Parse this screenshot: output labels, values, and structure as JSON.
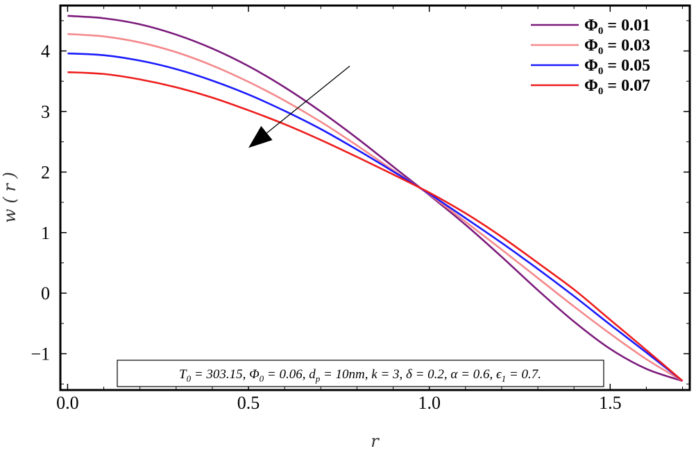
{
  "chart_data": {
    "type": "line",
    "title": "",
    "xlabel": "r",
    "ylabel": "w ( r )",
    "xlim": [
      -0.02,
      1.72
    ],
    "ylim": [
      -1.6,
      4.75
    ],
    "xticks": [
      {
        "value": 0.0,
        "label": "0.0"
      },
      {
        "value": 0.5,
        "label": "0.5"
      },
      {
        "value": 1.0,
        "label": "1.0"
      },
      {
        "value": 1.5,
        "label": "1.5"
      }
    ],
    "yticks": [
      {
        "value": -1,
        "label": "−1"
      },
      {
        "value": 0,
        "label": "0"
      },
      {
        "value": 1,
        "label": "1"
      },
      {
        "value": 2,
        "label": "2"
      },
      {
        "value": 3,
        "label": "3"
      },
      {
        "value": 4,
        "label": "4"
      }
    ],
    "grid": false,
    "legend_position": "top-right",
    "series": [
      {
        "name_symbol": "Φ",
        "name_sub": "0",
        "name_rest": " = 0.01",
        "color": "#7b1a7b",
        "x": [
          0,
          0.1,
          0.2,
          0.3,
          0.4,
          0.5,
          0.6,
          0.7,
          0.8,
          0.9,
          1.0,
          1.1,
          1.2,
          1.3,
          1.4,
          1.5,
          1.6,
          1.7
        ],
        "y": [
          4.58,
          4.54,
          4.44,
          4.27,
          4.04,
          3.75,
          3.4,
          3.0,
          2.56,
          2.09,
          1.62,
          1.13,
          0.6,
          0.05,
          -0.47,
          -0.92,
          -1.25,
          -1.45
        ]
      },
      {
        "name_symbol": "Φ",
        "name_sub": "0",
        "name_rest": " = 0.03",
        "color": "#f4888b",
        "x": [
          0,
          0.1,
          0.2,
          0.3,
          0.4,
          0.5,
          0.6,
          0.7,
          0.8,
          0.9,
          1.0,
          1.1,
          1.2,
          1.3,
          1.4,
          1.5,
          1.6,
          1.7
        ],
        "y": [
          4.28,
          4.24,
          4.14,
          3.98,
          3.76,
          3.49,
          3.18,
          2.83,
          2.44,
          2.03,
          1.63,
          1.18,
          0.72,
          0.25,
          -0.22,
          -0.67,
          -1.09,
          -1.45
        ]
      },
      {
        "name_symbol": "Φ",
        "name_sub": "0",
        "name_rest": " = 0.05",
        "color": "#1a1aff",
        "x": [
          0,
          0.1,
          0.2,
          0.3,
          0.4,
          0.5,
          0.6,
          0.7,
          0.8,
          0.9,
          1.0,
          1.1,
          1.2,
          1.3,
          1.4,
          1.5,
          1.6,
          1.7
        ],
        "y": [
          3.96,
          3.93,
          3.84,
          3.7,
          3.51,
          3.28,
          3.01,
          2.71,
          2.37,
          2.01,
          1.64,
          1.24,
          0.83,
          0.4,
          -0.05,
          -0.52,
          -0.98,
          -1.45
        ]
      },
      {
        "name_symbol": "Φ",
        "name_sub": "0",
        "name_rest": " = 0.07",
        "color": "#ee1c1c",
        "x": [
          0,
          0.1,
          0.2,
          0.3,
          0.4,
          0.5,
          0.6,
          0.7,
          0.8,
          0.9,
          1.0,
          1.1,
          1.2,
          1.3,
          1.4,
          1.5,
          1.6,
          1.7
        ],
        "y": [
          3.65,
          3.62,
          3.53,
          3.4,
          3.23,
          3.02,
          2.79,
          2.53,
          2.25,
          1.96,
          1.66,
          1.32,
          0.93,
          0.5,
          0.06,
          -0.44,
          -0.94,
          -1.45
        ]
      }
    ],
    "arrow": {
      "from": [
        0.78,
        3.75
      ],
      "to": [
        0.5,
        2.4
      ],
      "color": "#000000"
    },
    "annotation": {
      "position": "bottom-center",
      "parts": [
        {
          "t": "T"
        },
        {
          "t": "0",
          "sub": true
        },
        {
          "t": " = 303.15, "
        },
        {
          "t": "Φ"
        },
        {
          "t": "0",
          "sub": true
        },
        {
          "t": " = 0.06, "
        },
        {
          "t": "d"
        },
        {
          "t": "p",
          "sub": true
        },
        {
          "t": " = 10nm, k = 3, δ = 0.2, α = 0.6, ϵ"
        },
        {
          "t": "1",
          "sub": true
        },
        {
          "t": " = 0.7."
        }
      ]
    }
  }
}
